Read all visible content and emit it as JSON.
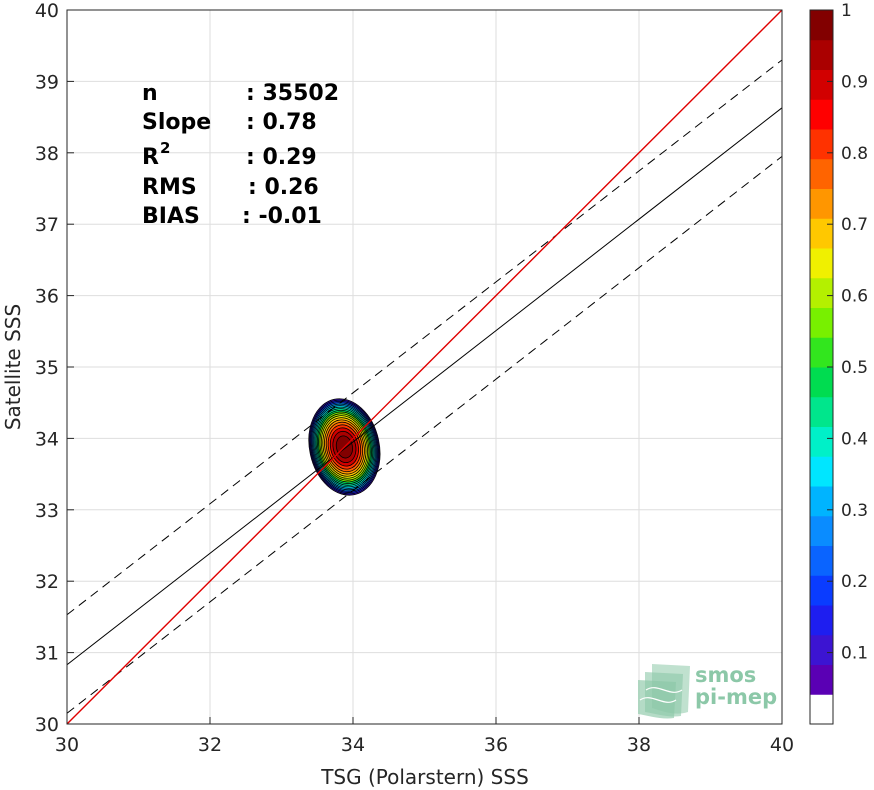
{
  "chart_data": {
    "type": "scatter",
    "title": "",
    "xlabel": "TSG (Polarstern) SSS",
    "ylabel": "Satellite SSS",
    "xlim": [
      30,
      40
    ],
    "ylim": [
      30,
      40
    ],
    "xticks": [
      "30",
      "32",
      "34",
      "36",
      "38",
      "40"
    ],
    "yticks": [
      "30",
      "31",
      "32",
      "33",
      "34",
      "35",
      "36",
      "37",
      "38",
      "39",
      "40"
    ],
    "grid": true,
    "density": {
      "center": [
        33.88,
        33.88
      ],
      "levels": [
        0.05,
        0.1,
        0.15,
        0.2,
        0.25,
        0.3,
        0.35,
        0.4,
        0.45,
        0.5,
        0.55,
        0.6,
        0.65,
        0.7,
        0.75,
        0.8,
        0.85,
        0.9,
        0.95
      ],
      "outer_extent_x": [
        33.4,
        34.4
      ],
      "outer_extent_y": [
        33.15,
        34.55
      ]
    },
    "lines": {
      "identity": {
        "x": [
          30,
          40
        ],
        "y": [
          30,
          40
        ],
        "color": "#e00000"
      },
      "regression": {
        "x": [
          30,
          40
        ],
        "y": [
          30.83,
          38.63
        ],
        "color": "#000000",
        "style": "solid"
      },
      "upper_bound": {
        "x": [
          30,
          40
        ],
        "y": [
          31.53,
          39.3
        ],
        "color": "#000000",
        "style": "dashed"
      },
      "lower_bound": {
        "x": [
          30,
          40
        ],
        "y": [
          30.15,
          37.95
        ],
        "color": "#000000",
        "style": "dashed"
      }
    },
    "stats": {
      "n_label": "n",
      "n_value": ": 35502",
      "slope_label": "Slope",
      "slope_value": ": 0.78",
      "r2_label": "R",
      "r2_sup": "2",
      "r2_value": ": 0.29",
      "rms_label": "RMS",
      "rms_value": ": 0.26",
      "bias_label": "BIAS",
      "bias_value": ": -0.01"
    },
    "colorbar": {
      "ticks": [
        "0.1",
        "0.2",
        "0.3",
        "0.4",
        "0.5",
        "0.6",
        "0.7",
        "0.8",
        "0.9",
        "1"
      ],
      "tick_values": [
        0.1,
        0.2,
        0.3,
        0.4,
        0.5,
        0.6,
        0.7,
        0.8,
        0.9,
        1.0
      ],
      "colors": [
        "#ffffff",
        "#5a00b4",
        "#3c14d2",
        "#1e1ef0",
        "#0a3cff",
        "#0a64ff",
        "#0a8cff",
        "#00b4ff",
        "#00e6ff",
        "#00f0c8",
        "#00e68c",
        "#00dc50",
        "#32e61e",
        "#78f000",
        "#b4f000",
        "#f0f000",
        "#ffc800",
        "#ff9600",
        "#ff6400",
        "#ff3200",
        "#ff0000",
        "#d20000",
        "#aa0000",
        "#820000"
      ]
    }
  },
  "logo": {
    "line1": "smos",
    "line2": "pi-mep"
  }
}
